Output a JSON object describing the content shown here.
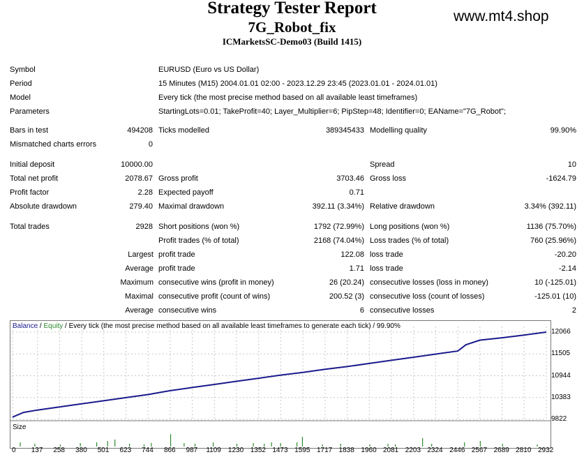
{
  "header": {
    "title": "Strategy Tester Report",
    "ea_name": "7G_Robot_fix",
    "server": "ICMarketsSC-Demo03 (Build 1415)",
    "site": "www.mt4.shop"
  },
  "info": {
    "symbol_label": "Symbol",
    "symbol": "EURUSD (Euro vs US Dollar)",
    "period_label": "Period",
    "period": "15 Minutes (M15) 2004.01.01 02:00 - 2023.12.29 23:45 (2023.01.01 - 2024.01.01)",
    "model_label": "Model",
    "model": "Every tick (the most precise method based on all available least timeframes)",
    "params_label": "Parameters",
    "params": "StartingLots=0.01; TakeProfit=40; Layer_Multiplier=6; PipStep=48; Identifier=0; EAName=\"7G_Robot\";"
  },
  "stats": {
    "bars_label": "Bars in test",
    "bars": "494208",
    "ticks_label": "Ticks modelled",
    "ticks": "389345433",
    "quality_label": "Modelling quality",
    "quality": "99.90%",
    "mismatch_label": "Mismatched charts errors",
    "mismatch": "0",
    "deposit_label": "Initial deposit",
    "deposit": "10000.00",
    "spread_label": "Spread",
    "spread": "10",
    "netprofit_label": "Total net profit",
    "netprofit": "2078.67",
    "grossprofit_label": "Gross profit",
    "grossprofit": "3703.46",
    "grossloss_label": "Gross loss",
    "grossloss": "-1624.79",
    "pf_label": "Profit factor",
    "pf": "2.28",
    "payoff_label": "Expected payoff",
    "payoff": "0.71",
    "absdd_label": "Absolute drawdown",
    "absdd": "279.40",
    "maxdd_label": "Maximal drawdown",
    "maxdd": "392.11 (3.34%)",
    "reldd_label": "Relative drawdown",
    "reldd": "3.34% (392.11)",
    "trades_label": "Total trades",
    "trades": "2928",
    "short_label": "Short positions (won %)",
    "short": "1792 (72.99%)",
    "long_label": "Long positions (won %)",
    "long": "1136 (75.70%)",
    "ptrades_label": "Profit trades (% of total)",
    "ptrades": "2168 (74.04%)",
    "ltrades_label": "Loss trades (% of total)",
    "ltrades": "760 (25.96%)",
    "largest_label": "Largest",
    "avg_label": "Average",
    "maximum_label": "Maximum",
    "maximal_label": "Maximal",
    "average2_label": "Average",
    "lp_label": "profit trade",
    "lp": "122.08",
    "ll_label": "loss trade",
    "ll": "-20.20",
    "ap_label": "profit trade",
    "ap": "1.71",
    "al_label": "loss trade",
    "al": "-2.14",
    "mcw_label": "consecutive wins (profit in money)",
    "mcw": "26 (20.24)",
    "mcl_label": "consecutive losses (loss in money)",
    "mcl": "10 (-125.01)",
    "mcp_label": "consecutive profit (count of wins)",
    "mcp": "200.52 (3)",
    "mcls_label": "consecutive loss (count of losses)",
    "mcls": "-125.01 (10)",
    "acw_label": "consecutive wins",
    "acw": "6",
    "acl_label": "consecutive losses",
    "acl": "2"
  },
  "legend": {
    "balance": "Balance",
    "sep": " / ",
    "equity": "Equity",
    "rest": " / Every tick (the most precise method based on all available least timeframes to generate each tick) / 99.90%"
  },
  "size_label": "Size",
  "colors": {
    "balance": "#1a1a8c",
    "equity": "#2e8b2e",
    "grid": "#c8c8c8"
  },
  "chart_data": {
    "type": "line",
    "y_ticks": [
      "12066",
      "11505",
      "10944",
      "10383",
      "9822"
    ],
    "ylim": [
      9822,
      12066
    ],
    "x_ticks": [
      "0",
      "137",
      "258",
      "380",
      "501",
      "623",
      "744",
      "866",
      "987",
      "1109",
      "1230",
      "1352",
      "1473",
      "1595",
      "1717",
      "1838",
      "1960",
      "2081",
      "2203",
      "2324",
      "2446",
      "2567",
      "2689",
      "2810",
      "2932"
    ],
    "xlim": [
      0,
      2932
    ],
    "series": [
      {
        "name": "Balance",
        "x": [
          0,
          60,
          137,
          258,
          380,
          501,
          623,
          744,
          866,
          987,
          1109,
          1230,
          1352,
          1473,
          1595,
          1717,
          1838,
          1960,
          2081,
          2203,
          2324,
          2446,
          2490,
          2567,
          2689,
          2810,
          2932
        ],
        "y": [
          9880,
          10000,
          10060,
          10140,
          10220,
          10300,
          10380,
          10460,
          10560,
          10640,
          10720,
          10800,
          10880,
          10960,
          11030,
          11110,
          11180,
          11260,
          11340,
          11420,
          11500,
          11580,
          11740,
          11860,
          11920,
          11990,
          12066
        ]
      }
    ]
  }
}
